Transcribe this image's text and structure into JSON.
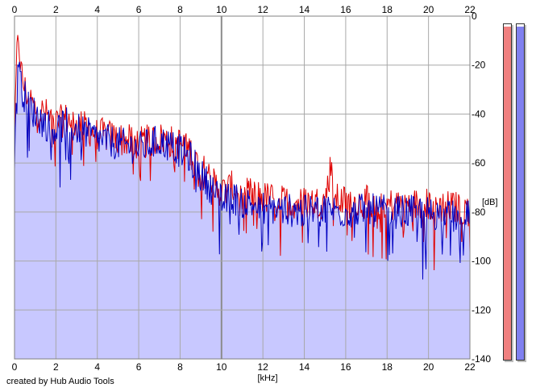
{
  "chart_data": {
    "type": "line",
    "xlabel": "[kHz]",
    "ylabel": "[dB]",
    "xlim": [
      0,
      22
    ],
    "ylim": [
      -140,
      0
    ],
    "xticks": [
      0,
      2,
      4,
      6,
      8,
      10,
      12,
      14,
      16,
      18,
      20,
      22
    ],
    "yticks": [
      0,
      -20,
      -40,
      -60,
      -80,
      -100,
      -120,
      -140
    ],
    "grid": true,
    "series": [
      {
        "color": "#e00000",
        "x": [
          0.0,
          0.1,
          0.2,
          0.3,
          0.5,
          1.0,
          1.5,
          2.0,
          2.5,
          3.0,
          4.0,
          5.0,
          6.0,
          7.0,
          8.0,
          8.5,
          9.0,
          9.5,
          10.0,
          10.5,
          11.0,
          12.0,
          13.0,
          14.0,
          15.0,
          15.3,
          15.5,
          16.0,
          17.0,
          18.0,
          19.0,
          20.0,
          21.0,
          22.0
        ],
        "values": [
          -55,
          -18,
          -8,
          -22,
          -30,
          -38,
          -40,
          -44,
          -42,
          -44,
          -48,
          -50,
          -52,
          -50,
          -52,
          -55,
          -62,
          -66,
          -72,
          -70,
          -72,
          -74,
          -76,
          -76,
          -76,
          -60,
          -75,
          -76,
          -76,
          -77,
          -77,
          -77,
          -78,
          -79
        ]
      },
      {
        "color": "#0000c0",
        "x": [
          0.0,
          0.1,
          0.2,
          0.3,
          0.5,
          1.0,
          1.5,
          2.0,
          2.5,
          3.0,
          4.0,
          5.0,
          6.0,
          7.0,
          8.0,
          8.5,
          9.0,
          9.5,
          10.0,
          10.5,
          11.0,
          12.0,
          13.0,
          14.0,
          15.0,
          16.0,
          17.0,
          18.0,
          19.0,
          20.0,
          21.0,
          22.0
        ],
        "values": [
          -60,
          -25,
          -15,
          -28,
          -33,
          -40,
          -44,
          -46,
          -44,
          -46,
          -50,
          -52,
          -54,
          -51,
          -55,
          -58,
          -65,
          -70,
          -76,
          -74,
          -76,
          -78,
          -79,
          -80,
          -79,
          -80,
          -79,
          -80,
          -80,
          -80,
          -82,
          -82
        ]
      }
    ],
    "area_fill_color": "#c8c8ff",
    "meters": [
      {
        "channel": "left",
        "level": -1,
        "color": "#f08080"
      },
      {
        "channel": "right",
        "level": -1,
        "color": "#8080f0"
      }
    ]
  },
  "footer": {
    "credit": "created by Hub Audio Tools"
  }
}
